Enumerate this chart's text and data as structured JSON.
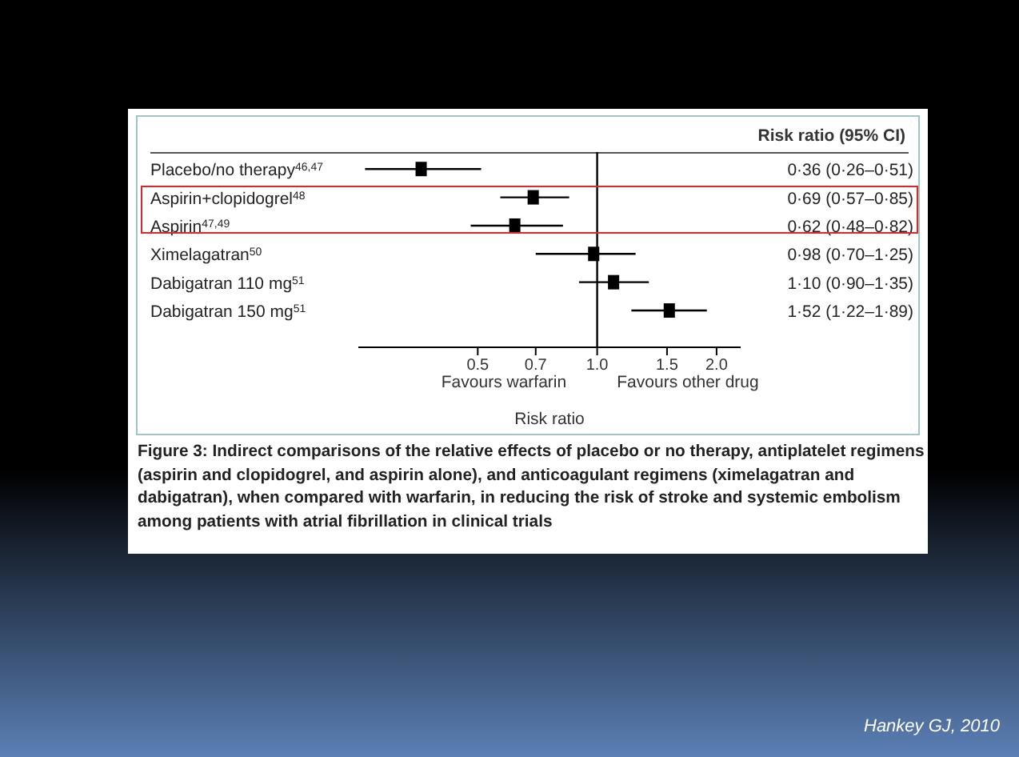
{
  "chart_data": {
    "type": "scatter",
    "orientation": "horizontal",
    "marker": "square",
    "grid": false,
    "categories": [
      "Placebo/no therapy$^{46,47}$",
      "Aspirin+clopidogrel$^{48}$",
      "Aspirin$^{47,49}$",
      "Ximelagatran$^{50}$",
      "Dabigatran 110 mg$^{51}$",
      "Dabigatran 150 mg$^{51}$"
    ],
    "series": [
      {
        "color": "#000000",
        "values": [
          0.36,
          0.69,
          0.62,
          0.98,
          1.1,
          1.52
        ],
        "errors": [
          [
            0.26,
            0.51
          ],
          [
            0.57,
            0.85
          ],
          [
            0.48,
            0.82
          ],
          [
            0.7,
            1.25
          ],
          [
            0.9,
            1.35
          ],
          [
            1.22,
            1.89
          ]
        ],
        "value_labels": [
          "0·36 (0·26–0·51)",
          "0·69 (0·57–0·85)",
          "0·62 (0·48–0·82)",
          "0·98 (0·70–1·25)",
          "1·10 (0·90–1·35)",
          "1·52 (1·22–1·89)"
        ]
      }
    ],
    "log": "x",
    "xlim": [
      0.25,
      2.3
    ],
    "xticks": [
      0.5,
      0.7,
      {
        "value": 1,
        "label": "1.0"
      },
      1.5,
      {
        "value": 2,
        "label": "2.0"
      }
    ],
    "xlabel": "Risk ratio",
    "ref_lines": [
      {
        "axis": "x",
        "value": 1,
        "color": "#000000"
      }
    ],
    "annotations": [
      "Risk ratio (95% CI)",
      "Favours warfarin",
      "Favours other drug",
      "Figure 3: Indirect comparisons of the relative effects of placebo or no therapy, antiplatelet regimens (aspirin and clopidogrel, and aspirin alone), and anticoagulant regimens (ximelagatran and dabigatran), when compared with warfarin, in reducing the risk of stroke and systemic embolism among patients with atrial fibrillation in clinical trials",
      "Hankey GJ, 2010"
    ]
  }
}
